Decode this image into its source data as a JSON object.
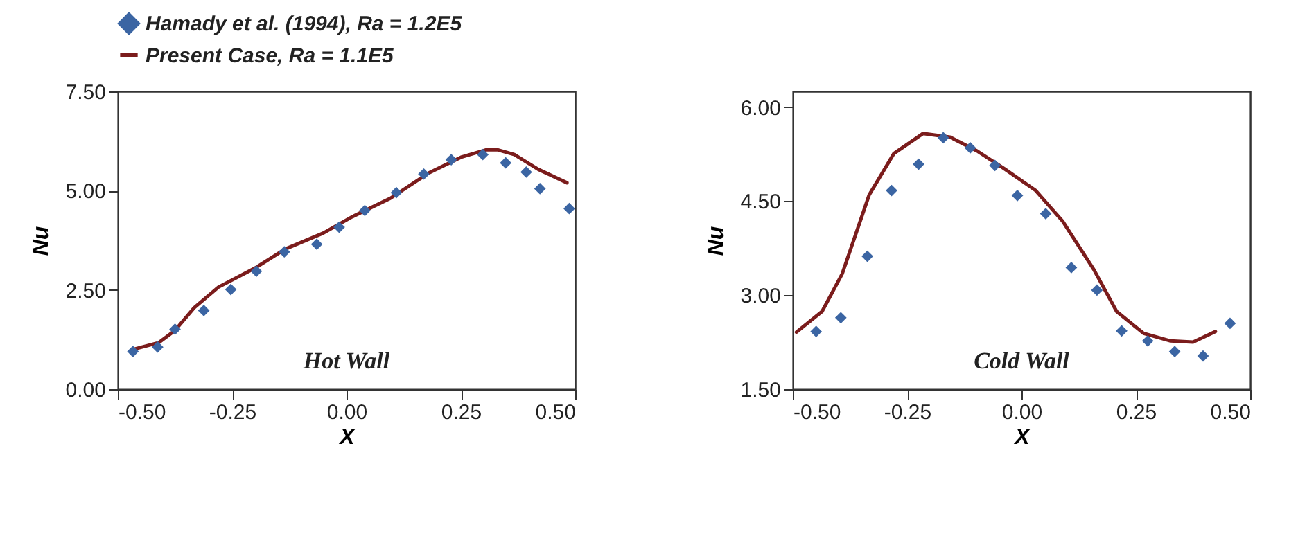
{
  "chart_data": [
    {
      "type": "scatter",
      "xlabel": "X",
      "ylabel": "Nu",
      "legend": "top",
      "grid": false,
      "annotations": [
        "Hot Wall"
      ],
      "xlim": [
        -0.5,
        0.5
      ],
      "xticks": [
        {
          "value": -0.5,
          "label": "-0.50"
        },
        {
          "value": -0.25,
          "label": "-0.25"
        },
        {
          "value": 0,
          "label": "0.00"
        },
        {
          "value": 0.25,
          "label": "0.25"
        },
        {
          "value": 0.5,
          "label": "0.50"
        }
      ],
      "ylim": [
        0,
        7.5
      ],
      "yticks": [
        {
          "value": 0,
          "label": "0.00"
        },
        {
          "value": 2.5,
          "label": "2.50"
        },
        {
          "value": 5,
          "label": "5.00"
        },
        {
          "value": 7.5,
          "label": "7.50"
        }
      ],
      "series": [
        {
          "name": "Hamady et al. (1994), Ra = 1.2E5",
          "marker": "diamond",
          "color": "#3b65a3",
          "x": [
            -0.467,
            -0.413,
            -0.375,
            -0.312,
            -0.253,
            -0.197,
            -0.136,
            -0.065,
            -0.016,
            0.04,
            0.109,
            0.169,
            0.229,
            0.298,
            0.348,
            0.393,
            0.423,
            0.487
          ],
          "values": [
            0.95,
            1.06,
            1.51,
            1.98,
            2.51,
            2.97,
            3.46,
            3.65,
            4.08,
            4.5,
            4.95,
            5.42,
            5.78,
            5.91,
            5.7,
            5.47,
            5.05,
            4.55
          ]
        },
        {
          "name": "Present Case, Ra = 1.1E5",
          "type": "line",
          "marker": "none",
          "line_style": "solid",
          "color": "#7b1c1c",
          "x": [
            -0.467,
            -0.411,
            -0.375,
            -0.333,
            -0.28,
            -0.197,
            -0.134,
            -0.051,
            0.012,
            0.096,
            0.179,
            0.252,
            0.305,
            0.331,
            0.367,
            0.419,
            0.482
          ],
          "values": [
            1.0,
            1.17,
            1.48,
            2.05,
            2.57,
            3.07,
            3.53,
            3.93,
            4.34,
            4.81,
            5.44,
            5.85,
            6.03,
            6.03,
            5.91,
            5.54,
            5.2
          ]
        }
      ]
    },
    {
      "type": "scatter",
      "xlabel": "X",
      "ylabel": "Nu",
      "grid": false,
      "annotations": [
        "Cold Wall"
      ],
      "xlim": [
        -0.5,
        0.5
      ],
      "xticks": [
        {
          "value": -0.5,
          "label": "-0.50"
        },
        {
          "value": -0.25,
          "label": "-0.25"
        },
        {
          "value": 0,
          "label": "0.00"
        },
        {
          "value": 0.25,
          "label": "0.25"
        },
        {
          "value": 0.5,
          "label": "0.50"
        }
      ],
      "ylim": [
        1.5,
        6.25
      ],
      "yticks": [
        {
          "value": 1.5,
          "label": "1.50"
        },
        {
          "value": 3,
          "label": "3.00"
        },
        {
          "value": 4.5,
          "label": "4.50"
        },
        {
          "value": 6,
          "label": "6.00"
        }
      ],
      "series": [
        {
          "marker": "diamond",
          "color": "#3b65a3",
          "x": [
            -0.449,
            -0.395,
            -0.337,
            -0.284,
            -0.225,
            -0.171,
            -0.112,
            -0.058,
            -0.009,
            0.053,
            0.109,
            0.165,
            0.219,
            0.276,
            0.335,
            0.397,
            0.456
          ],
          "values": [
            2.42,
            2.64,
            3.62,
            4.67,
            5.09,
            5.51,
            5.35,
            5.07,
            4.59,
            4.3,
            3.44,
            3.08,
            2.43,
            2.27,
            2.1,
            2.03,
            2.55
          ]
        },
        {
          "type": "line",
          "marker": "none",
          "line_style": "solid",
          "color": "#7b1c1c",
          "x": [
            -0.492,
            -0.436,
            -0.392,
            -0.333,
            -0.279,
            -0.215,
            -0.156,
            -0.097,
            -0.038,
            0.031,
            0.09,
            0.158,
            0.208,
            0.267,
            0.326,
            0.375,
            0.424
          ],
          "values": [
            2.41,
            2.74,
            3.34,
            4.6,
            5.26,
            5.58,
            5.52,
            5.3,
            5.02,
            4.67,
            4.18,
            3.41,
            2.74,
            2.39,
            2.27,
            2.25,
            2.42
          ]
        }
      ]
    }
  ]
}
